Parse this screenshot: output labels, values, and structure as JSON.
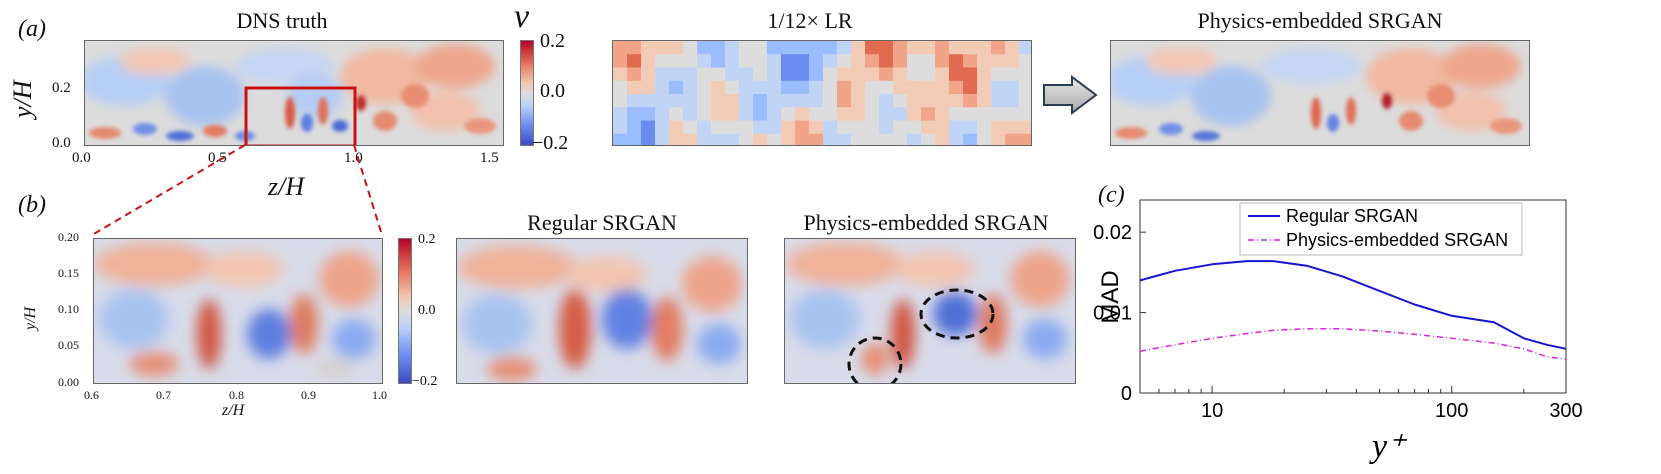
{
  "panel_labels": {
    "a": "(a)",
    "b": "(b)",
    "c": "(c)"
  },
  "panel_a": {
    "titles": {
      "dns": "DNS truth",
      "lr": "1/12× LR",
      "physics": "Physics-embedded SRGAN"
    },
    "colorbar": {
      "symbol": "v",
      "ticks": [
        "0.2",
        "0.0",
        "−0.2"
      ]
    },
    "y_axis": {
      "label": "y/H",
      "ticks": [
        "0.2",
        "0.0"
      ]
    },
    "x_axis": {
      "label": "z/H",
      "ticks": [
        "0.0",
        "0.5",
        "1.0",
        "1.5"
      ]
    },
    "arrow_icon": "right-arrow-icon"
  },
  "panel_b": {
    "titles": {
      "regular": "Regular SRGAN",
      "physics": "Physics-embedded SRGAN"
    },
    "colorbar": {
      "ticks": [
        "0.2",
        "0.0",
        "−0.2"
      ]
    },
    "y_axis": {
      "label": "y/H",
      "ticks": [
        "0.20",
        "0.15",
        "0.10",
        "0.05",
        "0.00"
      ]
    },
    "x_axis": {
      "label": "z/H",
      "ticks": [
        "0.6",
        "0.7",
        "0.8",
        "0.9",
        "1.0"
      ]
    }
  },
  "chart_data": {
    "type": "line",
    "title": "",
    "xlabel": "y⁺",
    "ylabel": "MAD",
    "xscale": "log",
    "xlim": [
      5,
      300
    ],
    "ylim": [
      0,
      0.024
    ],
    "xticks": [
      "10",
      "100",
      "300"
    ],
    "yticks": [
      "0",
      "0.01",
      "0.02"
    ],
    "legend": "top-right",
    "series": [
      {
        "name": "Regular SRGAN",
        "color": "#1515d6",
        "style": "solid",
        "x": [
          5,
          7,
          10,
          14,
          18,
          25,
          35,
          50,
          70,
          100,
          150,
          200,
          250,
          300
        ],
        "y": [
          0.014,
          0.0152,
          0.016,
          0.0164,
          0.0164,
          0.0158,
          0.0145,
          0.0127,
          0.011,
          0.0096,
          0.0088,
          0.0068,
          0.006,
          0.0055
        ]
      },
      {
        "name": "Physics-embedded SRGAN",
        "color": "#e020e0",
        "style": "dashdot",
        "x": [
          5,
          7,
          10,
          14,
          18,
          25,
          35,
          50,
          70,
          100,
          150,
          200,
          250,
          300
        ],
        "y": [
          0.0052,
          0.006,
          0.0068,
          0.0074,
          0.0078,
          0.008,
          0.008,
          0.0077,
          0.0073,
          0.0068,
          0.0062,
          0.0055,
          0.0045,
          0.0042
        ]
      }
    ]
  }
}
